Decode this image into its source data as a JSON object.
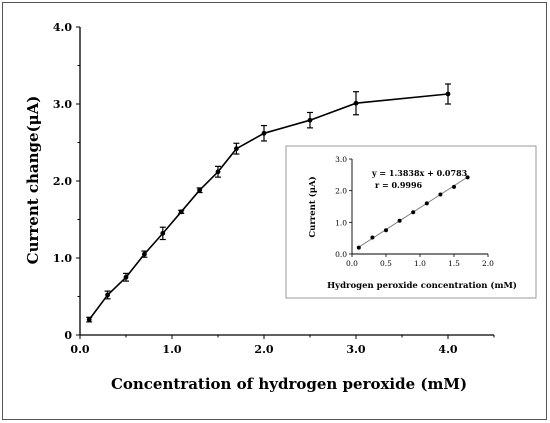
{
  "chart_data": [
    {
      "type": "line",
      "xlabel": "Concentration of hydrogen peroxide (mM)",
      "ylabel": "Current change(μA)",
      "xlim": [
        0,
        4.5
      ],
      "ylim": [
        0,
        4.0
      ],
      "x_ticks": [
        "0.0",
        "1.0",
        "2.0",
        "3.0",
        "4.0"
      ],
      "y_ticks": [
        "0",
        "1.0",
        "2.0",
        "3.0",
        "4.0"
      ],
      "x": [
        0.1,
        0.3,
        0.5,
        0.7,
        0.9,
        1.1,
        1.3,
        1.5,
        1.7,
        2.0,
        2.5,
        3.0,
        4.0
      ],
      "values": [
        0.2,
        0.52,
        0.75,
        1.05,
        1.32,
        1.6,
        1.88,
        2.12,
        2.42,
        2.62,
        2.79,
        3.01,
        3.13
      ],
      "errors": [
        0.03,
        0.05,
        0.05,
        0.04,
        0.08,
        0.02,
        0.03,
        0.07,
        0.07,
        0.1,
        0.1,
        0.15,
        0.13
      ],
      "grid": false
    },
    {
      "type": "scatter",
      "xlabel": "Hydrogen peroxide concentration (mM)",
      "ylabel": "Current (μA)",
      "xlim": [
        0,
        2.0
      ],
      "ylim": [
        0,
        3.0
      ],
      "x_ticks": [
        "0.0",
        "0.5",
        "1.0",
        "1.5",
        "2.0"
      ],
      "y_ticks": [
        "0.0",
        "1.0",
        "2.0",
        "3.0"
      ],
      "x": [
        0.1,
        0.3,
        0.5,
        0.7,
        0.9,
        1.1,
        1.3,
        1.5,
        1.7
      ],
      "values": [
        0.2,
        0.52,
        0.75,
        1.05,
        1.32,
        1.6,
        1.88,
        2.12,
        2.42
      ],
      "fit": {
        "slope": 1.3838,
        "intercept": 0.0783,
        "x_range": [
          0.1,
          1.7
        ]
      },
      "annotations": [
        "y = 1.3838x + 0.0783",
        "r  = 0.9996"
      ],
      "grid": false
    }
  ]
}
